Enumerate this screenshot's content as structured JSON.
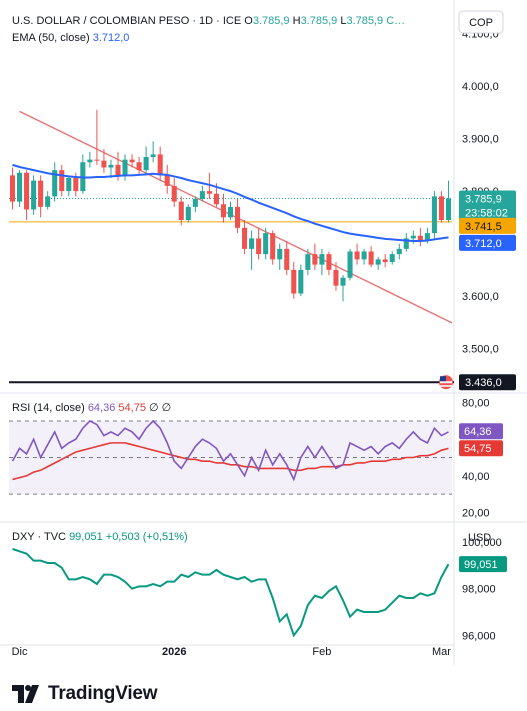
{
  "header": {
    "symbol": "U.S. DOLLAR / COLOMBIAN PESO · 1D · ICE",
    "o_label": "O",
    "o_value": "3.785,9",
    "h_label": "H",
    "h_value": "3.785,9",
    "l_label": "L",
    "l_value": "3.785,9",
    "c_label": "C…",
    "currency_button": "COP",
    "ema_label": "EMA (50, close)",
    "ema_value": "3.712,0"
  },
  "rsi": {
    "label": "RSI (14, close)",
    "value_1": "64,36",
    "value_2": "54,75",
    "flags": "∅ ∅"
  },
  "dxy": {
    "label": "DXY · TVC",
    "value": "99,051",
    "change": "+0,503 (+0,51%)",
    "currency": "USD"
  },
  "footer": {
    "brand": "TradingView"
  },
  "colors": {
    "up": "#26a69a",
    "down": "#ef5350",
    "ema": "#2962ff",
    "trendline": "#e57373",
    "hline": "#f7a600",
    "rsi": "#7e57c2",
    "rsi_ma": "#e53935",
    "dxy": "#089981"
  },
  "chart_data": [
    {
      "type": "candlestick",
      "title": "U.S. DOLLAR / COLOMBIAN PESO · 1D · ICE",
      "y_ticks": [
        "4.100,0",
        "4.000,0",
        "3.900,0",
        "3.800,0",
        "3.600,0",
        "3.500,0"
      ],
      "ylim": [
        3425,
        4145
      ],
      "x_ticks": [
        "Dic",
        "2026",
        "Feb",
        "Mar"
      ],
      "candles": [
        [
          3830,
          3845,
          3765,
          3780
        ],
        [
          3780,
          3840,
          3770,
          3835
        ],
        [
          3835,
          3840,
          3745,
          3765
        ],
        [
          3765,
          3830,
          3755,
          3820
        ],
        [
          3820,
          3830,
          3750,
          3770
        ],
        [
          3770,
          3800,
          3765,
          3790
        ],
        [
          3790,
          3855,
          3780,
          3840
        ],
        [
          3840,
          3850,
          3790,
          3800
        ],
        [
          3800,
          3830,
          3790,
          3825
        ],
        [
          3825,
          3835,
          3790,
          3800
        ],
        [
          3800,
          3870,
          3795,
          3855
        ],
        [
          3855,
          3875,
          3845,
          3860
        ],
        [
          3860,
          3955,
          3850,
          3858
        ],
        [
          3858,
          3880,
          3835,
          3845
        ],
        [
          3845,
          3860,
          3825,
          3850
        ],
        [
          3850,
          3875,
          3820,
          3830
        ],
        [
          3830,
          3870,
          3820,
          3860
        ],
        [
          3860,
          3870,
          3845,
          3855
        ],
        [
          3855,
          3865,
          3830,
          3840
        ],
        [
          3840,
          3885,
          3830,
          3865
        ],
        [
          3865,
          3895,
          3855,
          3870
        ],
        [
          3870,
          3885,
          3820,
          3830
        ],
        [
          3830,
          3850,
          3795,
          3810
        ],
        [
          3810,
          3825,
          3770,
          3780
        ],
        [
          3780,
          3790,
          3735,
          3745
        ],
        [
          3745,
          3775,
          3740,
          3770
        ],
        [
          3770,
          3790,
          3760,
          3785
        ],
        [
          3785,
          3810,
          3780,
          3800
        ],
        [
          3800,
          3835,
          3785,
          3795
        ],
        [
          3795,
          3815,
          3770,
          3775
        ],
        [
          3775,
          3795,
          3740,
          3750
        ],
        [
          3750,
          3780,
          3745,
          3770
        ],
        [
          3770,
          3785,
          3720,
          3730
        ],
        [
          3730,
          3745,
          3680,
          3690
        ],
        [
          3690,
          3725,
          3650,
          3710
        ],
        [
          3710,
          3730,
          3670,
          3680
        ],
        [
          3680,
          3730,
          3670,
          3720
        ],
        [
          3720,
          3725,
          3660,
          3670
        ],
        [
          3670,
          3700,
          3650,
          3690
        ],
        [
          3690,
          3705,
          3640,
          3650
        ],
        [
          3650,
          3665,
          3595,
          3605
        ],
        [
          3605,
          3660,
          3600,
          3650
        ],
        [
          3650,
          3690,
          3640,
          3680
        ],
        [
          3680,
          3700,
          3650,
          3660
        ],
        [
          3660,
          3690,
          3640,
          3680
        ],
        [
          3680,
          3685,
          3640,
          3650
        ],
        [
          3650,
          3665,
          3610,
          3620
        ],
        [
          3620,
          3640,
          3590,
          3635
        ],
        [
          3635,
          3690,
          3630,
          3685
        ],
        [
          3685,
          3700,
          3660,
          3670
        ],
        [
          3670,
          3690,
          3660,
          3685
        ],
        [
          3685,
          3695,
          3655,
          3660
        ],
        [
          3660,
          3675,
          3650,
          3670
        ],
        [
          3670,
          3680,
          3655,
          3665
        ],
        [
          3665,
          3685,
          3660,
          3680
        ],
        [
          3680,
          3700,
          3670,
          3690
        ],
        [
          3690,
          3720,
          3685,
          3710
        ],
        [
          3710,
          3725,
          3700,
          3715
        ],
        [
          3715,
          3730,
          3695,
          3705
        ],
        [
          3705,
          3730,
          3700,
          3720
        ],
        [
          3720,
          3800,
          3710,
          3790
        ],
        [
          3790,
          3800,
          3740,
          3745
        ],
        [
          3745,
          3820,
          3740,
          3786
        ]
      ],
      "series": [
        {
          "name": "EMA (50, close)",
          "values": [
            3850,
            3846,
            3843,
            3840,
            3837,
            3834,
            3832,
            3830,
            3828,
            3827,
            3826,
            3826,
            3827,
            3827,
            3828,
            3829,
            3830,
            3830,
            3831,
            3832,
            3833,
            3832,
            3831,
            3828,
            3825,
            3821,
            3818,
            3815,
            3812,
            3808,
            3804,
            3800,
            3795,
            3789,
            3784,
            3778,
            3773,
            3768,
            3763,
            3758,
            3752,
            3747,
            3743,
            3738,
            3734,
            3730,
            3726,
            3722,
            3719,
            3717,
            3715,
            3713,
            3711,
            3709,
            3708,
            3707,
            3706,
            3705,
            3705,
            3706,
            3708,
            3710,
            3712
          ]
        }
      ],
      "trendline": [
        [
          1,
          3952
        ],
        [
          62,
          3549
        ]
      ],
      "horizontal_level": 3741.5,
      "last_close_line": 3785.9,
      "price_labels": [
        {
          "text": "3.785,9",
          "sub": "23:58:02",
          "value": 3785.9,
          "color": "#26a69a"
        },
        {
          "text": "3.741,5",
          "value": 3741.5,
          "color": "#f7a600"
        },
        {
          "text": "3.712,0",
          "value": 3712.0,
          "color": "#2962ff"
        },
        {
          "text": "3.436,0",
          "value": 3436.0,
          "color": "#131722"
        }
      ]
    },
    {
      "type": "line",
      "title": "RSI (14, close)",
      "y_ticks": [
        "80,00",
        "40,00",
        "20,00"
      ],
      "ylim": [
        18,
        82
      ],
      "bands": [
        70,
        50,
        30
      ],
      "series": [
        {
          "name": "RSI",
          "values": [
            48,
            55,
            52,
            60,
            50,
            57,
            64,
            55,
            58,
            60,
            66,
            70,
            68,
            62,
            64,
            62,
            66,
            64,
            60,
            66,
            70,
            66,
            58,
            48,
            44,
            50,
            56,
            60,
            58,
            55,
            48,
            52,
            46,
            40,
            50,
            43,
            54,
            46,
            52,
            46,
            38,
            50,
            56,
            50,
            56,
            50,
            44,
            46,
            58,
            56,
            54,
            56,
            52,
            56,
            58,
            55,
            60,
            64,
            60,
            58,
            66,
            62,
            64
          ]
        },
        {
          "name": "RSI MA",
          "values": [
            38,
            39,
            40,
            42,
            43,
            45,
            47,
            49,
            51,
            53,
            54,
            55,
            56,
            57,
            58,
            58,
            58,
            57,
            56,
            55,
            54,
            53,
            52,
            51,
            50,
            49,
            49,
            48,
            48,
            47,
            47,
            46,
            46,
            45,
            45,
            44,
            44,
            44,
            44,
            44,
            43,
            43,
            44,
            44,
            45,
            45,
            45,
            46,
            46,
            47,
            47,
            48,
            48,
            48,
            49,
            49,
            50,
            50,
            51,
            51,
            52,
            54,
            55
          ]
        }
      ]
    },
    {
      "type": "line",
      "title": "DXY · TVC",
      "y_ticks": [
        "100,000",
        "98,000",
        "96,000"
      ],
      "ylim": [
        95.8,
        100.6
      ],
      "series": [
        {
          "name": "DXY",
          "values": [
            99.7,
            99.6,
            99.5,
            99.2,
            99.2,
            99.1,
            99.1,
            98.9,
            98.4,
            98.4,
            98.5,
            98.4,
            98.2,
            98.6,
            98.6,
            98.5,
            98.3,
            98.0,
            98.1,
            98.1,
            98.2,
            98.1,
            98.3,
            98.3,
            98.6,
            98.5,
            98.7,
            98.6,
            98.6,
            98.8,
            98.6,
            98.5,
            98.4,
            98.5,
            98.3,
            98.4,
            98.4,
            97.6,
            96.6,
            96.9,
            96.0,
            96.4,
            97.3,
            97.7,
            97.6,
            97.9,
            98.1,
            97.5,
            96.8,
            97.1,
            97.0,
            97.0,
            97.0,
            97.1,
            97.4,
            97.7,
            97.6,
            97.6,
            97.8,
            97.7,
            97.8,
            98.5,
            99.051
          ]
        }
      ]
    }
  ]
}
